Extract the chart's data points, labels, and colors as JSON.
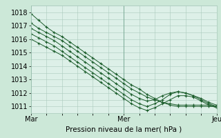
{
  "background_color": "#cce8d8",
  "plot_bg_color": "#ddf0e8",
  "grid_color": "#aacabc",
  "line_color": "#1a5c2a",
  "ylim": [
    1010.5,
    1018.5
  ],
  "ylabel_ticks": [
    1011,
    1012,
    1013,
    1014,
    1015,
    1016,
    1017,
    1018
  ],
  "xlabel": "Pression niveau de la mer( hPa )",
  "xtick_labels": [
    "Mar",
    "Mer",
    "Jeu"
  ],
  "xtick_positions": [
    0,
    12,
    24
  ],
  "series": [
    [
      1017.9,
      1017.4,
      1016.9,
      1016.5,
      1016.2,
      1015.8,
      1015.4,
      1015.0,
      1014.6,
      1014.2,
      1013.8,
      1013.4,
      1013.0,
      1012.6,
      1012.3,
      1011.9,
      1011.6,
      1011.3,
      1011.1,
      1011.0,
      1011.0,
      1011.0,
      1011.0,
      1011.0,
      1011.0
    ],
    [
      1017.2,
      1016.8,
      1016.5,
      1016.2,
      1015.9,
      1015.5,
      1015.1,
      1014.7,
      1014.3,
      1013.9,
      1013.5,
      1013.1,
      1012.7,
      1012.3,
      1012.0,
      1011.7,
      1011.5,
      1011.3,
      1011.2,
      1011.1,
      1011.1,
      1011.1,
      1011.1,
      1011.1,
      1011.0
    ],
    [
      1016.8,
      1016.5,
      1016.2,
      1015.9,
      1015.5,
      1015.1,
      1014.7,
      1014.3,
      1013.9,
      1013.5,
      1013.1,
      1012.7,
      1012.3,
      1011.9,
      1011.6,
      1011.4,
      1011.5,
      1011.8,
      1012.0,
      1012.1,
      1012.0,
      1011.8,
      1011.6,
      1011.3,
      1011.1
    ],
    [
      1016.4,
      1016.1,
      1015.8,
      1015.5,
      1015.1,
      1014.7,
      1014.3,
      1013.9,
      1013.5,
      1013.1,
      1012.7,
      1012.3,
      1011.9,
      1011.5,
      1011.2,
      1011.0,
      1011.2,
      1011.5,
      1011.9,
      1012.1,
      1012.0,
      1011.8,
      1011.5,
      1011.2,
      1011.0
    ],
    [
      1016.0,
      1015.7,
      1015.4,
      1015.1,
      1014.8,
      1014.4,
      1014.0,
      1013.6,
      1013.2,
      1012.8,
      1012.4,
      1012.0,
      1011.6,
      1011.2,
      1010.9,
      1010.7,
      1010.9,
      1011.2,
      1011.5,
      1011.8,
      1011.8,
      1011.7,
      1011.4,
      1011.1,
      1010.9
    ]
  ],
  "tick_fontsize": 7,
  "xlabel_fontsize": 7.5
}
